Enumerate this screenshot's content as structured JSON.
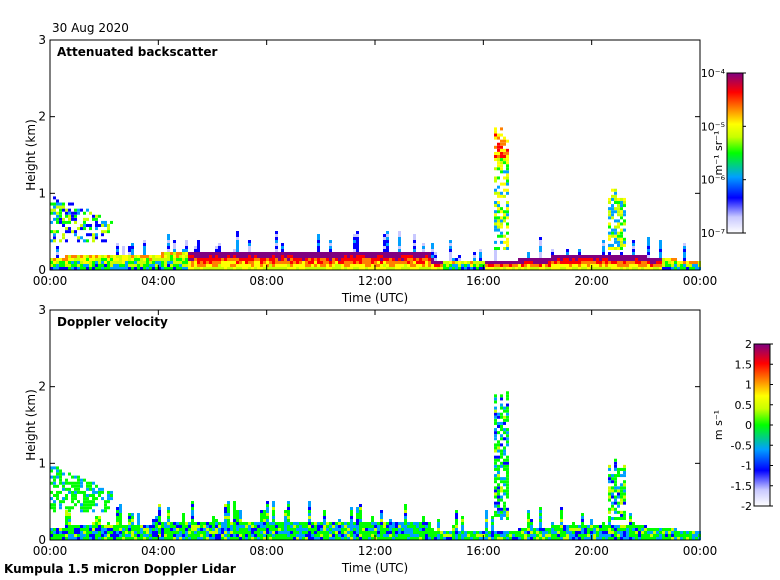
{
  "date": "30 Aug 2020",
  "footer": "Kumpula 1.5 micron Doppler Lidar",
  "chart_data": [
    {
      "type": "heatmap",
      "title": "Attenuated backscatter",
      "xlabel": "Time (UTC)",
      "ylabel": "Height (km)",
      "xlim": [
        0,
        24
      ],
      "ylim": [
        0,
        3
      ],
      "xticks": [
        "00:00",
        "04:00",
        "08:00",
        "12:00",
        "16:00",
        "20:00",
        "00:00"
      ],
      "yticks": [
        "0",
        "1",
        "2",
        "3"
      ],
      "colorbar": {
        "label": "m⁻¹ sr⁻¹",
        "scale": "log",
        "range": [
          1e-07,
          0.0001
        ],
        "ticks": [
          "10⁻⁷",
          "10⁻⁶",
          "10⁻⁵",
          "10⁻⁴"
        ],
        "colors": [
          "#ffffff",
          "#c8c8ff",
          "#0000ff",
          "#00a0ff",
          "#00ff00",
          "#c8ff00",
          "#ffff00",
          "#ff8000",
          "#ff0000",
          "#800080"
        ]
      },
      "features": [
        {
          "name": "boundary layer aerosol",
          "time_range": [
            0,
            24
          ],
          "height_top_km": 0.25
        },
        {
          "name": "early morning layer",
          "time_range": [
            0,
            2.3
          ],
          "height_range_km": [
            0.4,
            1.0
          ]
        },
        {
          "name": "cloud column",
          "time_range": [
            16.3,
            16.9
          ],
          "height_range_km": [
            0.3,
            2.0
          ]
        },
        {
          "name": "cloud column",
          "time_range": [
            20.5,
            21.2
          ],
          "height_range_km": [
            0.3,
            1.1
          ]
        }
      ]
    },
    {
      "type": "heatmap",
      "title": "Doppler velocity",
      "xlabel": "Time (UTC)",
      "ylabel": "Height (km)",
      "xlim": [
        0,
        24
      ],
      "ylim": [
        0,
        3
      ],
      "xticks": [
        "00:00",
        "04:00",
        "08:00",
        "12:00",
        "16:00",
        "20:00",
        "00:00"
      ],
      "yticks": [
        "0",
        "1",
        "2",
        "3"
      ],
      "colorbar": {
        "label": "m s⁻¹",
        "scale": "linear",
        "range": [
          -2,
          2
        ],
        "ticks": [
          "-2",
          "-1.5",
          "-1",
          "-0.5",
          "0",
          "0.5",
          "1",
          "1.5",
          "2"
        ],
        "colors": [
          "#ffffff",
          "#c8c8ff",
          "#0000ff",
          "#00a0ff",
          "#00ff00",
          "#c8ff00",
          "#ffff00",
          "#ff8000",
          "#ff0000",
          "#800080"
        ]
      }
    }
  ]
}
